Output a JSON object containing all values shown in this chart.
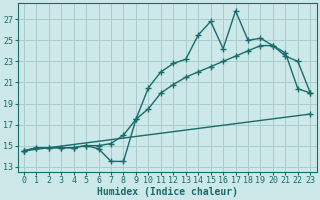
{
  "bg_color": "#cce8e8",
  "grid_color": "#aacccc",
  "line_color": "#1a6b6b",
  "xlabel": "Humidex (Indice chaleur)",
  "ylabel_ticks": [
    13,
    15,
    17,
    19,
    21,
    23,
    25,
    27
  ],
  "xlim": [
    -0.5,
    23.5
  ],
  "ylim": [
    12.5,
    28.5
  ],
  "line1_x": [
    0,
    1,
    2,
    3,
    4,
    5,
    6,
    7,
    8,
    9,
    10,
    11,
    12,
    13,
    14,
    15,
    16,
    17,
    18,
    19,
    20,
    21,
    22,
    23
  ],
  "line1_y": [
    14.5,
    14.8,
    14.8,
    14.8,
    14.8,
    15.0,
    14.7,
    13.5,
    13.5,
    17.5,
    20.5,
    22.0,
    22.8,
    23.2,
    25.5,
    26.8,
    24.2,
    27.8,
    25.0,
    25.2,
    24.5,
    23.8,
    20.4,
    20.0
  ],
  "line2_x": [
    0,
    1,
    2,
    3,
    4,
    5,
    6,
    7,
    8,
    9,
    10,
    11,
    12,
    13,
    14,
    15,
    16,
    17,
    18,
    19,
    20,
    21,
    22,
    23
  ],
  "line2_y": [
    14.5,
    14.8,
    14.8,
    14.8,
    14.8,
    15.0,
    15.0,
    15.2,
    16.0,
    17.5,
    18.5,
    20.0,
    20.8,
    21.5,
    22.0,
    22.5,
    23.0,
    23.5,
    24.0,
    24.5,
    24.5,
    23.5,
    23.0,
    20.0
  ],
  "line3_x": [
    0,
    23
  ],
  "line3_y": [
    14.5,
    18.0
  ],
  "marker": "+",
  "marker_size": 4,
  "line_width": 1.0,
  "tick_fontsize": 6,
  "xlabel_fontsize": 7
}
